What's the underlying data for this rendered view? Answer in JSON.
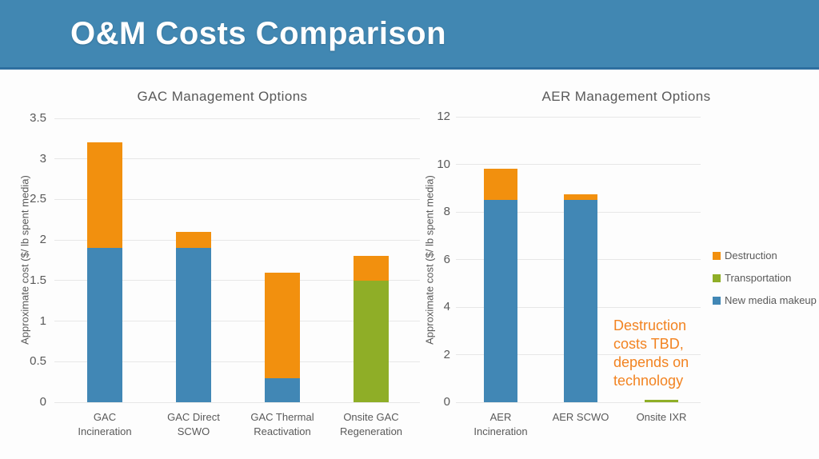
{
  "header": {
    "title": "O&M Costs Comparison"
  },
  "colors": {
    "header_bg": "#4187B2",
    "header_border": "#2E6F9F",
    "destruction_orange": "#F2900E",
    "transportation_green": "#8FAE27",
    "new_media_blue": "#4187B5",
    "text_gray": "#595959",
    "annotation_orange": "#F28321",
    "gridline": "#E7E7E7"
  },
  "legend": {
    "position": "right",
    "items": [
      {
        "label": "Destruction",
        "color": "#F2900E"
      },
      {
        "label": "Transportation",
        "color": "#8FAE27"
      },
      {
        "label": "New media makeup",
        "color": "#4187B5"
      }
    ]
  },
  "annotation": {
    "lines": [
      "Destruction",
      "costs TBD,",
      "depends on",
      "technology"
    ],
    "color": "#F28321"
  },
  "chart_data": [
    {
      "type": "bar",
      "stacked": true,
      "title": "GAC Management Options",
      "xlabel": "",
      "ylabel": "Approximate cost ($/ lb spent media)",
      "ylim": [
        0,
        3.5
      ],
      "yticks": [
        0,
        0.5,
        1,
        1.5,
        2,
        2.5,
        3,
        3.5
      ],
      "grid": true,
      "legend_position": "outside-right-shared",
      "categories": [
        [
          "GAC",
          "Incineration"
        ],
        [
          "GAC Direct",
          "SCWO"
        ],
        [
          "GAC Thermal",
          "Reactivation"
        ],
        [
          "Onsite GAC",
          "Regeneration"
        ]
      ],
      "series": [
        {
          "name": "New media makeup",
          "color": "#4187B5",
          "values": [
            1.9,
            1.9,
            0.3,
            0
          ]
        },
        {
          "name": "Transportation",
          "color": "#8FAE27",
          "values": [
            0,
            0,
            0,
            1.5
          ]
        },
        {
          "name": "Destruction",
          "color": "#F2900E",
          "values": [
            1.3,
            0.2,
            1.3,
            0.3
          ]
        }
      ],
      "stack_totals": [
        3.2,
        2.1,
        1.6,
        1.8
      ]
    },
    {
      "type": "bar",
      "stacked": true,
      "title": "AER Management Options",
      "xlabel": "",
      "ylabel": "Approximate cost ($/ lb spent media)",
      "ylim": [
        0,
        12
      ],
      "yticks": [
        0,
        2,
        4,
        6,
        8,
        10,
        12
      ],
      "grid": true,
      "legend_position": "outside-right-shared",
      "categories": [
        [
          "AER",
          "Incineration"
        ],
        [
          "AER SCWO"
        ],
        [
          "Onsite IXR"
        ]
      ],
      "series": [
        {
          "name": "New media makeup",
          "color": "#4187B5",
          "values": [
            8.5,
            8.5,
            0
          ]
        },
        {
          "name": "Transportation",
          "color": "#8FAE27",
          "values": [
            0,
            0,
            0.1
          ]
        },
        {
          "name": "Destruction",
          "color": "#F2900E",
          "values": [
            1.3,
            0.25,
            0
          ]
        }
      ],
      "stack_totals": [
        9.8,
        8.75,
        0.1
      ]
    }
  ]
}
